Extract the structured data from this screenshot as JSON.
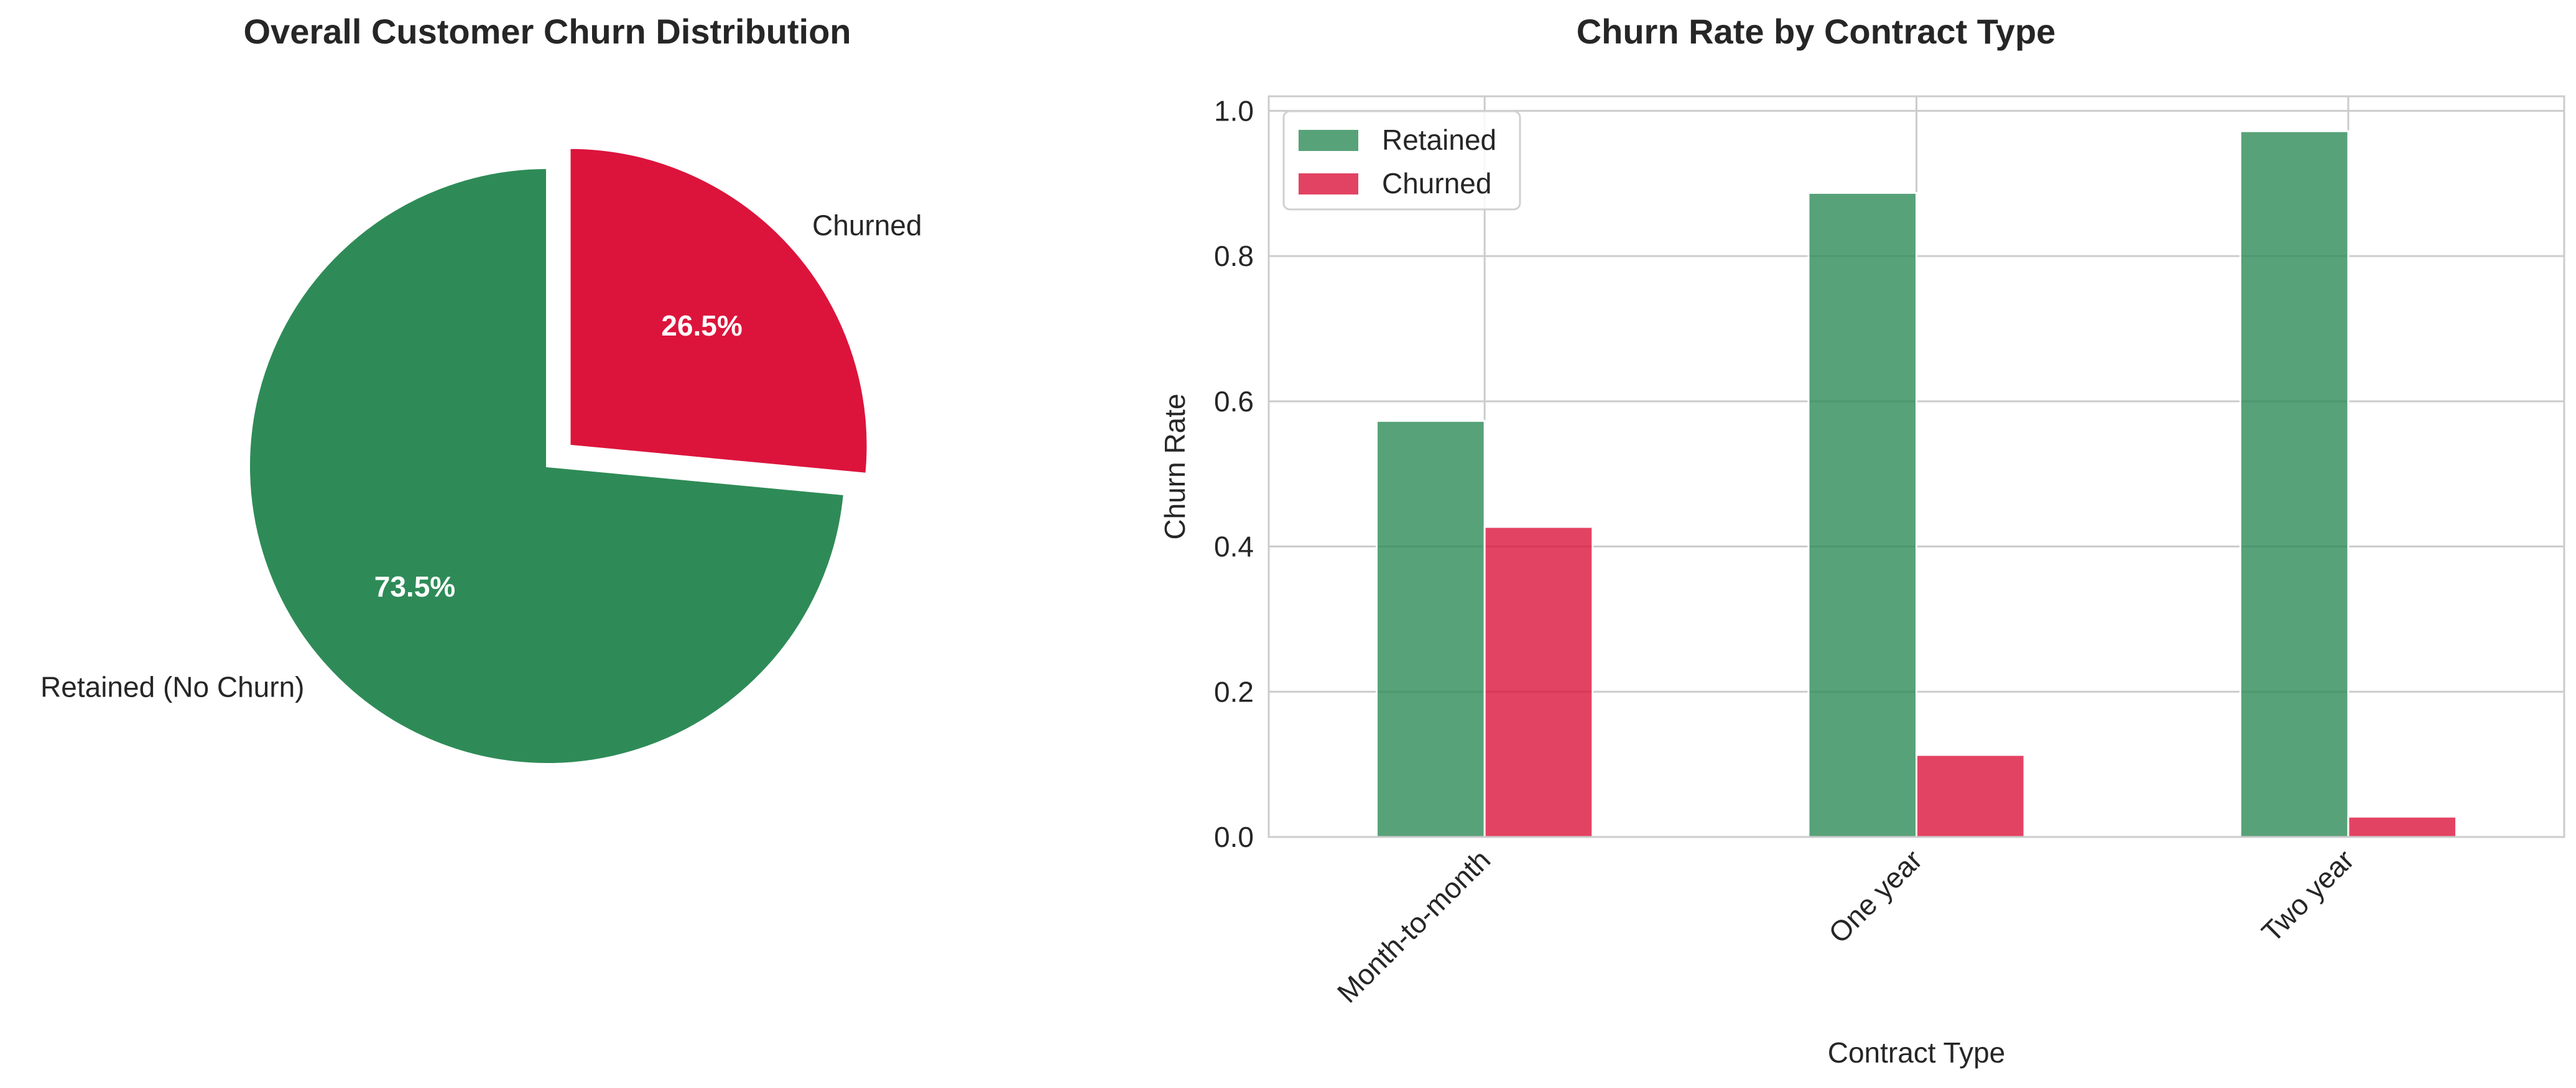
{
  "chart_data": [
    {
      "type": "pie",
      "title": "Overall Customer Churn Distribution",
      "slices": [
        {
          "label": "Retained (No Churn)",
          "value": 73.5,
          "pct_label": "73.5%",
          "color": "#2e8b57",
          "exploded": false
        },
        {
          "label": "Churned",
          "value": 26.5,
          "pct_label": "26.5%",
          "color": "#dc143c",
          "exploded": true
        }
      ],
      "start_angle": "90",
      "direction": "counterclockwise"
    },
    {
      "type": "bar",
      "title": "Churn Rate by Contract Type",
      "xlabel": "Contract Type",
      "ylabel": "Churn Rate",
      "categories": [
        "Month-to-month",
        "One year",
        "Two year"
      ],
      "series": [
        {
          "name": "Retained",
          "values": [
            0.573,
            0.887,
            0.972
          ],
          "color": "#2e8b57"
        },
        {
          "name": "Churned",
          "values": [
            0.427,
            0.113,
            0.028
          ],
          "color": "#dc143c"
        }
      ],
      "ylim": [
        0.0,
        1.02
      ],
      "yticks": [
        "0.0",
        "0.2",
        "0.4",
        "0.6",
        "0.8",
        "1.0"
      ],
      "grid": true,
      "legend": "top-left"
    }
  ]
}
